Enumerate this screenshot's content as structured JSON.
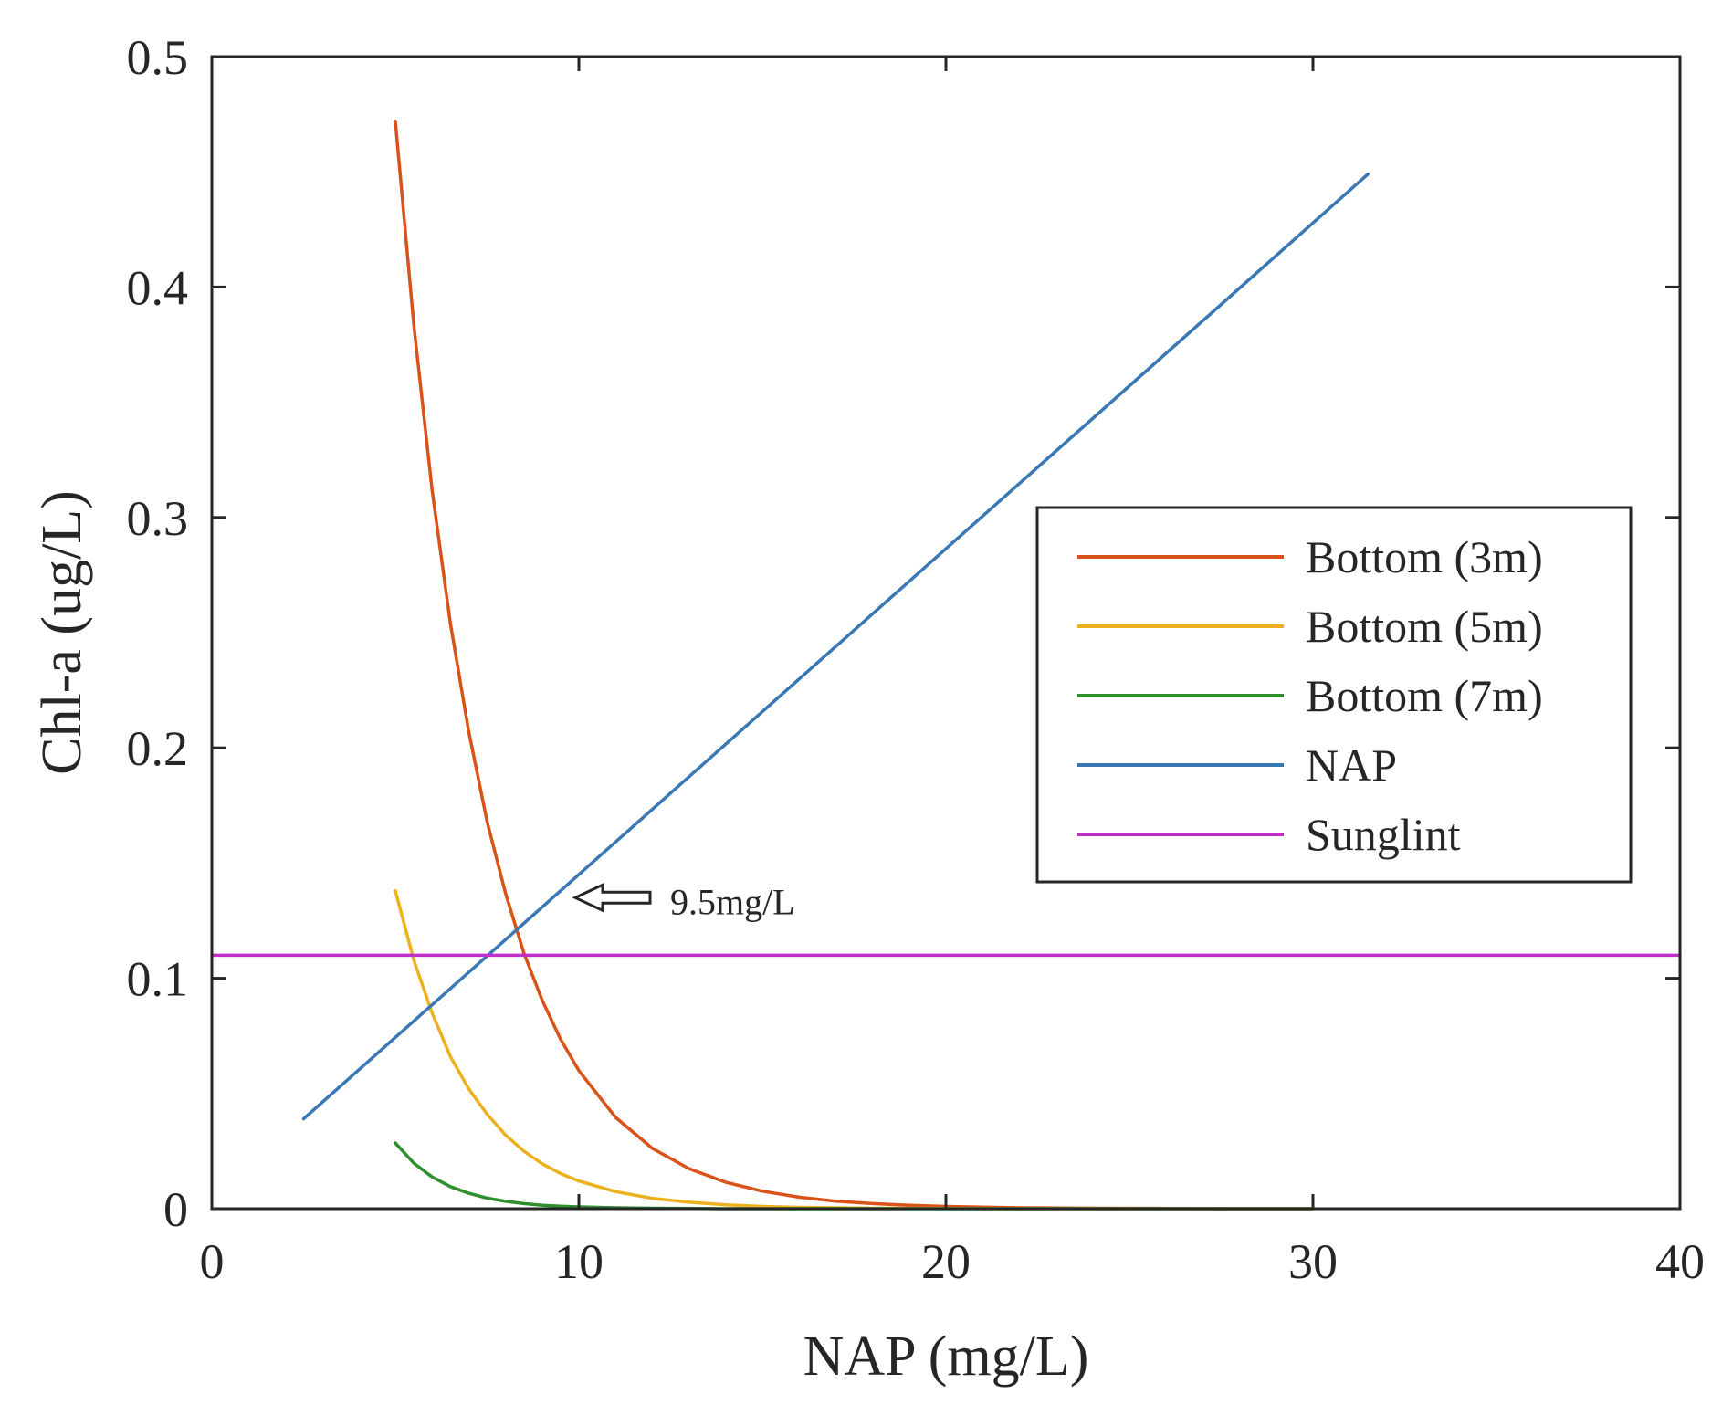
{
  "chart_data": {
    "type": "line",
    "title": "",
    "xlabel": "NAP (mg/L)",
    "ylabel": "Chl-a (ug/L)",
    "xlim": [
      0,
      40
    ],
    "ylim": [
      0,
      0.5
    ],
    "xticks": [
      0,
      10,
      20,
      30,
      40
    ],
    "xtick_labels": [
      "0",
      "10",
      "20",
      "30",
      "40"
    ],
    "yticks": [
      0,
      0.1,
      0.2,
      0.3,
      0.4,
      0.5
    ],
    "ytick_labels": [
      "0",
      "0.1",
      "0.2",
      "0.3",
      "0.4",
      "0.5"
    ],
    "grid": false,
    "legend_position": "right",
    "series": [
      {
        "name": "Bottom (3m)",
        "color": "#d95319",
        "x": [
          5,
          5.5,
          6,
          6.5,
          7,
          7.5,
          8,
          8.5,
          9,
          9.5,
          10,
          11,
          12,
          13,
          14,
          15,
          16,
          17,
          18,
          19,
          20,
          22,
          24,
          26,
          28,
          30
        ],
        "y": [
          0.472,
          0.384,
          0.312,
          0.254,
          0.207,
          0.168,
          0.137,
          0.111,
          0.0905,
          0.0736,
          0.0599,
          0.0396,
          0.0262,
          0.0174,
          0.0115,
          0.0076,
          0.005,
          0.0033,
          0.0022,
          0.0015,
          0.001,
          0.0004,
          0.0002,
          0.0001,
          0.0,
          0.0
        ]
      },
      {
        "name": "Bottom (5m)",
        "color": "#edb120",
        "x": [
          5,
          5.5,
          6,
          6.5,
          7,
          7.5,
          8,
          8.5,
          9,
          9.5,
          10,
          11,
          12,
          13,
          14,
          15,
          16,
          18,
          20,
          22,
          25,
          30
        ],
        "y": [
          0.138,
          0.108,
          0.085,
          0.066,
          0.052,
          0.041,
          0.032,
          0.025,
          0.0195,
          0.0153,
          0.012,
          0.0074,
          0.0045,
          0.0028,
          0.0017,
          0.001,
          0.0006,
          0.0002,
          0.0001,
          0.0,
          0.0,
          0.0
        ]
      },
      {
        "name": "Bottom (7m)",
        "color": "#2f8f2f",
        "x": [
          5,
          5.5,
          6,
          6.5,
          7,
          7.5,
          8,
          8.5,
          9,
          9.5,
          10,
          11,
          12,
          14,
          16,
          20,
          25,
          30
        ],
        "y": [
          0.0285,
          0.0198,
          0.0138,
          0.0096,
          0.0067,
          0.0046,
          0.0032,
          0.0022,
          0.0015,
          0.0011,
          0.0008,
          0.0004,
          0.0002,
          0.0,
          0.0,
          0.0,
          0.0,
          0.0
        ]
      },
      {
        "name": "NAP",
        "color": "#3a78b4",
        "x": [
          2.5,
          31.5
        ],
        "y": [
          0.039,
          0.449
        ]
      },
      {
        "name": "Sunglint",
        "color": "#c030c8",
        "x": [
          0,
          40
        ],
        "y": [
          0.11,
          0.11
        ]
      }
    ],
    "annotations": [
      {
        "text": "9.5mg/L",
        "arrow_tip_x": 9.8,
        "arrow_tip_y": 0.135,
        "arrow_direction": "left"
      }
    ]
  }
}
